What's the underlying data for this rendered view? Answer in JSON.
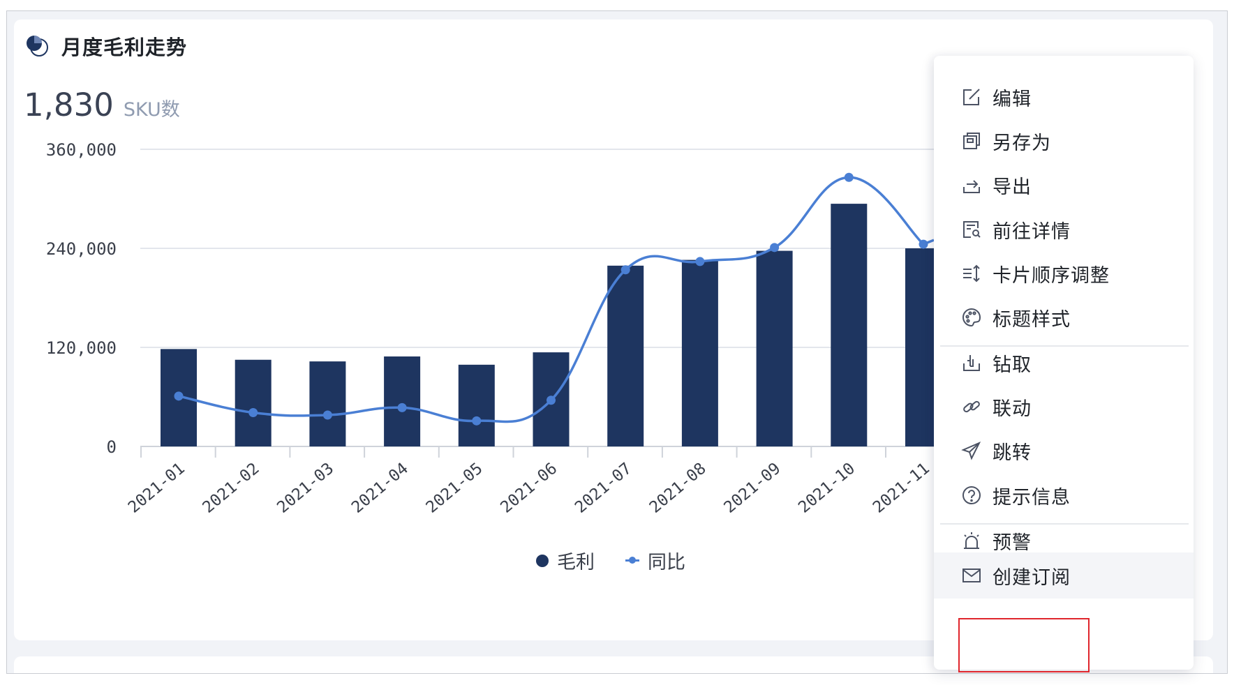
{
  "card": {
    "title": "月度毛利走势",
    "title_icon": "pie-badge-icon",
    "kpi_value": "1,830",
    "kpi_label": "SKU数"
  },
  "colors": {
    "bar": "#1e3560",
    "line": "#4a7fd4",
    "grid": "#e3e6ec",
    "highlight_border": "#e0252c"
  },
  "chart_data": {
    "type": "bar",
    "categories": [
      "2021-01",
      "2021-02",
      "2021-03",
      "2021-04",
      "2021-05",
      "2021-06",
      "2021-07",
      "2021-08",
      "2021-09",
      "2021-10",
      "2021-11"
    ],
    "y_ticks": [
      "0",
      "120,000",
      "240,000",
      "360,000"
    ],
    "ylim": [
      0,
      360000
    ],
    "series": [
      {
        "name": "毛利",
        "type": "bar",
        "values": [
          118000,
          105000,
          103000,
          109000,
          99000,
          114000,
          219000,
          226000,
          237000,
          294000,
          240000
        ]
      },
      {
        "name": "同比",
        "type": "line",
        "values": [
          61000,
          41000,
          38000,
          47000,
          31000,
          56000,
          214000,
          224000,
          241000,
          326000,
          245000
        ]
      }
    ],
    "grid": true,
    "legend_position": "bottom-center"
  },
  "menu": {
    "items": [
      {
        "label": "编辑",
        "icon": "edit-icon"
      },
      {
        "label": "另存为",
        "icon": "save-as-icon"
      },
      {
        "label": "导出",
        "icon": "export-icon"
      },
      {
        "label": "前往详情",
        "icon": "detail-icon"
      },
      {
        "label": "卡片顺序调整",
        "icon": "reorder-icon"
      },
      {
        "label": "标题样式",
        "icon": "palette-icon"
      },
      {
        "label": "钻取",
        "icon": "drill-icon"
      },
      {
        "label": "联动",
        "icon": "link-icon"
      },
      {
        "label": "跳转",
        "icon": "send-icon"
      },
      {
        "label": "提示信息",
        "icon": "help-icon"
      },
      {
        "label": "预警",
        "icon": "alarm-icon"
      },
      {
        "label": "创建订阅",
        "icon": "mail-icon"
      }
    ]
  }
}
